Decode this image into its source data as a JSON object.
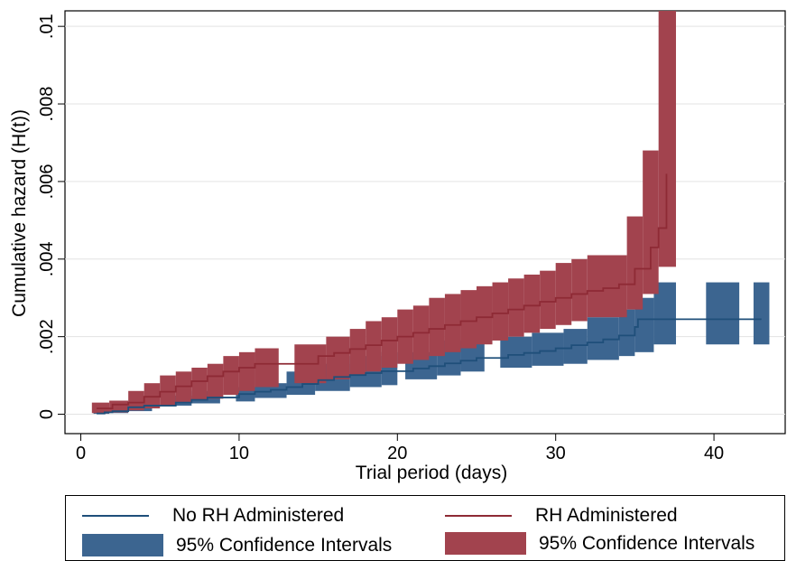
{
  "chart_data": {
    "type": "area",
    "title": "",
    "xlabel": "Trial period (days)",
    "ylabel": "Cumulative hazard (H(t))",
    "xlim": [
      -1,
      44.5
    ],
    "ylim": [
      -0.0005,
      0.0104
    ],
    "xticks": [
      0,
      10,
      20,
      30,
      40
    ],
    "xtick_labels": [
      "0",
      "10",
      "20",
      "30",
      "40"
    ],
    "yticks": [
      0,
      0.002,
      0.004,
      0.006,
      0.008,
      0.01
    ],
    "ytick_labels": [
      "0",
      ".002",
      ".004",
      ".006",
      ".008",
      ".01"
    ],
    "grid": true,
    "legend_position": "bottom",
    "series": [
      {
        "name": "No RH Administered",
        "color": "#1f4f7a",
        "line": [
          [
            1,
            2e-05
          ],
          [
            1.5,
            5e-05
          ],
          [
            2,
            8e-05
          ],
          [
            3,
            0.00018
          ],
          [
            4,
            0.00022
          ],
          [
            6,
            0.0003
          ],
          [
            7,
            0.00037
          ],
          [
            8,
            0.00043
          ],
          [
            10,
            0.00052
          ],
          [
            11,
            0.00058
          ],
          [
            12,
            0.00063
          ],
          [
            13,
            0.0007
          ],
          [
            14,
            0.00078
          ],
          [
            15,
            0.00088
          ],
          [
            16,
            0.00096
          ],
          [
            17,
            0.00101
          ],
          [
            18,
            0.00106
          ],
          [
            19,
            0.00111
          ],
          [
            21,
            0.00118
          ],
          [
            22,
            0.00124
          ],
          [
            23,
            0.00131
          ],
          [
            24,
            0.00138
          ],
          [
            25,
            0.00145
          ],
          [
            27,
            0.00153
          ],
          [
            28,
            0.00158
          ],
          [
            29,
            0.00163
          ],
          [
            30,
            0.0017
          ],
          [
            31,
            0.00178
          ],
          [
            32,
            0.00185
          ],
          [
            33,
            0.00193
          ],
          [
            34,
            0.00203
          ],
          [
            35,
            0.00225
          ],
          [
            35.2,
            0.00245
          ],
          [
            43,
            0.00245
          ]
        ]
      },
      {
        "name": "RH Administered",
        "color": "#8e2a35",
        "line": [
          [
            1,
            0.00015
          ],
          [
            2,
            0.00025
          ],
          [
            3,
            0.0003
          ],
          [
            4,
            0.00045
          ],
          [
            5,
            0.00058
          ],
          [
            6,
            0.00072
          ],
          [
            7,
            0.00085
          ],
          [
            8,
            0.00098
          ],
          [
            9,
            0.0011
          ],
          [
            10,
            0.0012
          ],
          [
            11,
            0.0013
          ],
          [
            12,
            0.0013
          ],
          [
            14,
            0.0013
          ],
          [
            15,
            0.0015
          ],
          [
            16,
            0.00158
          ],
          [
            17,
            0.00168
          ],
          [
            18,
            0.00178
          ],
          [
            19,
            0.0019
          ],
          [
            20,
            0.002
          ],
          [
            21,
            0.0021
          ],
          [
            22,
            0.0022
          ],
          [
            23,
            0.0023
          ],
          [
            24,
            0.0024
          ],
          [
            25,
            0.0025
          ],
          [
            26,
            0.0026
          ],
          [
            27,
            0.0027
          ],
          [
            28,
            0.0028
          ],
          [
            29,
            0.0029
          ],
          [
            30,
            0.003
          ],
          [
            31,
            0.0031
          ],
          [
            32,
            0.00318
          ],
          [
            33,
            0.00325
          ],
          [
            34,
            0.00335
          ],
          [
            35,
            0.00375
          ],
          [
            36,
            0.0043
          ],
          [
            36.5,
            0.0048
          ],
          [
            37,
            0.0062
          ]
        ]
      }
    ],
    "confidence_intervals": [
      {
        "name": "95% Confidence Intervals",
        "color": "#3c6590",
        "segments": [
          {
            "x": [
              0.8,
              1.8
            ],
            "lo": 1e-05,
            "hi": 7e-05
          },
          {
            "x": [
              1.8,
              3.0
            ],
            "lo": 3e-05,
            "hi": 0.00018
          },
          {
            "x": [
              3.0,
              4.5
            ],
            "lo": 8e-05,
            "hi": 0.0003
          },
          {
            "x": [
              5.8,
              7.0
            ],
            "lo": 0.00022,
            "hi": 0.00048
          },
          {
            "x": [
              7.0,
              8.8
            ],
            "lo": 0.00028,
            "hi": 0.0006
          },
          {
            "x": [
              9.8,
              11.0
            ],
            "lo": 0.00033,
            "hi": 0.0007
          },
          {
            "x": [
              11.0,
              13.0
            ],
            "lo": 0.00042,
            "hi": 0.0008
          },
          {
            "x": [
              13.0,
              14.8
            ],
            "lo": 0.0005,
            "hi": 0.0011
          },
          {
            "x": [
              14.8,
              17.0
            ],
            "lo": 0.0006,
            "hi": 0.0013
          },
          {
            "x": [
              17.0,
              19.0
            ],
            "lo": 0.0007,
            "hi": 0.0015
          },
          {
            "x": [
              19.0,
              20.0
            ],
            "lo": 0.00075,
            "hi": 0.0016
          },
          {
            "x": [
              20.5,
              22.5
            ],
            "lo": 0.0009,
            "hi": 0.0016
          },
          {
            "x": [
              22.5,
              24.0
            ],
            "lo": 0.001,
            "hi": 0.0019
          },
          {
            "x": [
              24.0,
              25.5
            ],
            "lo": 0.0011,
            "hi": 0.002
          },
          {
            "x": [
              26.5,
              28.5
            ],
            "lo": 0.0012,
            "hi": 0.002
          },
          {
            "x": [
              28.5,
              30.5
            ],
            "lo": 0.00125,
            "hi": 0.0021
          },
          {
            "x": [
              30.5,
              32.0
            ],
            "lo": 0.0013,
            "hi": 0.0022
          },
          {
            "x": [
              32.0,
              34.0
            ],
            "lo": 0.0014,
            "hi": 0.0025
          },
          {
            "x": [
              34.0,
              35.0
            ],
            "lo": 0.0015,
            "hi": 0.0027
          },
          {
            "x": [
              35.0,
              36.2
            ],
            "lo": 0.0016,
            "hi": 0.003
          },
          {
            "x": [
              36.2,
              37.6
            ],
            "lo": 0.0018,
            "hi": 0.0034
          },
          {
            "x": [
              39.5,
              41.6
            ],
            "lo": 0.0018,
            "hi": 0.0034
          },
          {
            "x": [
              42.5,
              43.5
            ],
            "lo": 0.0018,
            "hi": 0.0034
          }
        ]
      },
      {
        "name": "95% Confidence Intervals",
        "color": "#a2434e",
        "segments": [
          {
            "x": [
              0.7,
              1.8
            ],
            "lo": 3e-05,
            "hi": 0.0003
          },
          {
            "x": [
              1.8,
              3.0
            ],
            "lo": 5e-05,
            "hi": 0.00035
          },
          {
            "x": [
              3.0,
              4.0
            ],
            "lo": 0.0001,
            "hi": 0.0006
          },
          {
            "x": [
              4.0,
              5.0
            ],
            "lo": 0.00015,
            "hi": 0.0008
          },
          {
            "x": [
              5.0,
              6.0
            ],
            "lo": 0.0002,
            "hi": 0.001
          },
          {
            "x": [
              6.0,
              7.0
            ],
            "lo": 0.0003,
            "hi": 0.0011
          },
          {
            "x": [
              7.0,
              8.0
            ],
            "lo": 0.00035,
            "hi": 0.0012
          },
          {
            "x": [
              8.0,
              9.0
            ],
            "lo": 0.0004,
            "hi": 0.0013
          },
          {
            "x": [
              9.0,
              10.0
            ],
            "lo": 0.0005,
            "hi": 0.0015
          },
          {
            "x": [
              10.0,
              11.0
            ],
            "lo": 0.0006,
            "hi": 0.0016
          },
          {
            "x": [
              11.0,
              12.5
            ],
            "lo": 0.0007,
            "hi": 0.0017
          },
          {
            "x": [
              13.5,
              15.5
            ],
            "lo": 0.0008,
            "hi": 0.0018
          },
          {
            "x": [
              15.5,
              17.0
            ],
            "lo": 0.0009,
            "hi": 0.002
          },
          {
            "x": [
              17.0,
              18.0
            ],
            "lo": 0.001,
            "hi": 0.0022
          },
          {
            "x": [
              18.0,
              19.0
            ],
            "lo": 0.0011,
            "hi": 0.0024
          },
          {
            "x": [
              19.0,
              20.0
            ],
            "lo": 0.0012,
            "hi": 0.0025
          },
          {
            "x": [
              20.0,
              21.0
            ],
            "lo": 0.0013,
            "hi": 0.0027
          },
          {
            "x": [
              21.0,
              22.0
            ],
            "lo": 0.0014,
            "hi": 0.0028
          },
          {
            "x": [
              22.0,
              23.0
            ],
            "lo": 0.0015,
            "hi": 0.003
          },
          {
            "x": [
              23.0,
              24.0
            ],
            "lo": 0.0016,
            "hi": 0.0031
          },
          {
            "x": [
              24.0,
              25.0
            ],
            "lo": 0.0017,
            "hi": 0.0032
          },
          {
            "x": [
              25.0,
              26.0
            ],
            "lo": 0.0018,
            "hi": 0.0033
          },
          {
            "x": [
              26.0,
              27.0
            ],
            "lo": 0.0019,
            "hi": 0.0034
          },
          {
            "x": [
              27.0,
              28.0
            ],
            "lo": 0.002,
            "hi": 0.0035
          },
          {
            "x": [
              28.0,
              29.0
            ],
            "lo": 0.0021,
            "hi": 0.0036
          },
          {
            "x": [
              29.0,
              30.0
            ],
            "lo": 0.0022,
            "hi": 0.0037
          },
          {
            "x": [
              30.0,
              31.0
            ],
            "lo": 0.0023,
            "hi": 0.0039
          },
          {
            "x": [
              31.0,
              32.0
            ],
            "lo": 0.0024,
            "hi": 0.004
          },
          {
            "x": [
              32.0,
              34.5
            ],
            "lo": 0.0025,
            "hi": 0.0041
          },
          {
            "x": [
              34.5,
              35.5
            ],
            "lo": 0.0027,
            "hi": 0.0051
          },
          {
            "x": [
              35.5,
              36.5
            ],
            "lo": 0.0031,
            "hi": 0.0068
          },
          {
            "x": [
              36.5,
              37.6
            ],
            "lo": 0.0038,
            "hi": 0.0104
          }
        ]
      }
    ]
  },
  "legend": {
    "no_rh_line": "No RH Administered",
    "rh_line": "RH Administered",
    "no_rh_ci": "95% Confidence Intervals",
    "rh_ci": "95% Confidence Intervals",
    "colors": {
      "no_rh_line": "#1f4f7a",
      "rh_line": "#8e2a35",
      "no_rh_ci": "#3c6590",
      "rh_ci": "#a2434e"
    }
  }
}
